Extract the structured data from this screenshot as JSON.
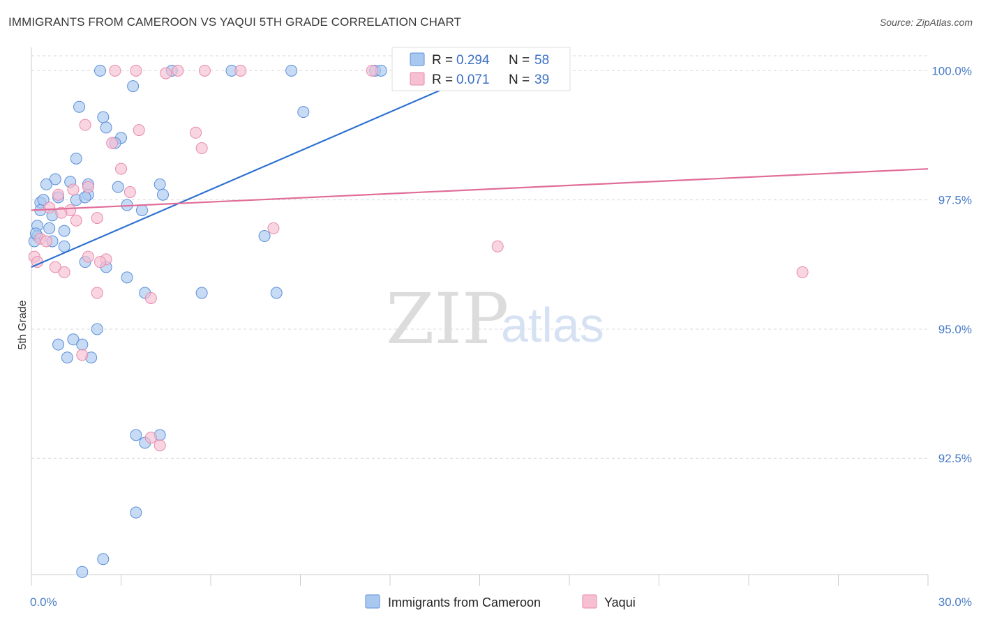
{
  "header": {
    "title": "IMMIGRANTS FROM CAMEROON VS YAQUI 5TH GRADE CORRELATION CHART",
    "source": "Source: ZipAtlas.com"
  },
  "watermark": {
    "zip": "ZIP",
    "atlas": "atlas"
  },
  "colors": {
    "blue_fill": "#a9c8f0",
    "blue_stroke": "#5b8fd8",
    "blue_line": "#2e72d2",
    "pink_fill": "#f6bfd2",
    "pink_stroke": "#e88aab",
    "pink_line": "#e06d98",
    "grid": "#d8d8d8",
    "axis": "#cccccc",
    "tick_text": "#4a7bc8"
  },
  "legend": {
    "r_label": "R =",
    "n_label": "N =",
    "series": [
      {
        "r": "0.294",
        "n": "58"
      },
      {
        "r": "0.071",
        "n": "39"
      }
    ]
  },
  "chart_data": {
    "type": "scatter",
    "title": "IMMIGRANTS FROM CAMEROON VS YAQUI 5TH GRADE CORRELATION CHART",
    "xlabel": "",
    "ylabel": "5th Grade",
    "xlim": [
      0,
      30
    ],
    "ylim": [
      90.25,
      100.45
    ],
    "x_tick_labels": [
      "0.0%",
      "30.0%"
    ],
    "y_ticks": [
      92.5,
      95.0,
      97.5,
      100.0
    ],
    "y_tick_labels": [
      "92.5%",
      "95.0%",
      "97.5%",
      "100.0%"
    ],
    "grid": true,
    "legend_position": "top-center",
    "series": [
      {
        "name": "Immigrants from Cameroon",
        "color": "#a9c8f0",
        "trend": [
          [
            0,
            96.2
          ],
          [
            15.0,
            99.95
          ]
        ],
        "points": [
          [
            2.3,
            100.0
          ],
          [
            3.4,
            99.7
          ],
          [
            4.7,
            100.0
          ],
          [
            6.7,
            100.0
          ],
          [
            8.7,
            100.0
          ],
          [
            11.5,
            100.0
          ],
          [
            11.7,
            100.0
          ],
          [
            9.1,
            99.2
          ],
          [
            1.6,
            99.3
          ],
          [
            2.4,
            99.1
          ],
          [
            2.5,
            98.9
          ],
          [
            3.0,
            98.7
          ],
          [
            2.8,
            98.6
          ],
          [
            1.5,
            98.3
          ],
          [
            0.8,
            97.9
          ],
          [
            0.5,
            97.8
          ],
          [
            1.3,
            97.85
          ],
          [
            1.9,
            97.8
          ],
          [
            2.9,
            97.75
          ],
          [
            4.3,
            97.8
          ],
          [
            4.4,
            97.6
          ],
          [
            1.9,
            97.6
          ],
          [
            0.9,
            97.55
          ],
          [
            1.5,
            97.5
          ],
          [
            1.8,
            97.55
          ],
          [
            0.3,
            97.45
          ],
          [
            0.4,
            97.5
          ],
          [
            3.2,
            97.4
          ],
          [
            3.7,
            97.3
          ],
          [
            0.3,
            97.3
          ],
          [
            0.7,
            97.2
          ],
          [
            0.2,
            97.0
          ],
          [
            0.6,
            96.95
          ],
          [
            1.1,
            96.9
          ],
          [
            0.7,
            96.7
          ],
          [
            0.2,
            96.8
          ],
          [
            0.1,
            96.7
          ],
          [
            1.1,
            96.6
          ],
          [
            7.8,
            96.8
          ],
          [
            1.8,
            96.3
          ],
          [
            2.5,
            96.2
          ],
          [
            3.2,
            96.0
          ],
          [
            3.8,
            95.7
          ],
          [
            5.7,
            95.7
          ],
          [
            8.2,
            95.7
          ],
          [
            2.2,
            95.0
          ],
          [
            1.4,
            94.8
          ],
          [
            0.9,
            94.7
          ],
          [
            1.7,
            94.7
          ],
          [
            1.2,
            94.45
          ],
          [
            2.0,
            94.45
          ],
          [
            3.5,
            92.95
          ],
          [
            4.3,
            92.95
          ],
          [
            3.8,
            92.8
          ],
          [
            3.5,
            91.45
          ],
          [
            2.4,
            90.55
          ],
          [
            1.7,
            90.3
          ],
          [
            0.15,
            96.85
          ]
        ]
      },
      {
        "name": "Yaqui",
        "color": "#f6bfd2",
        "trend": [
          [
            0,
            97.3
          ],
          [
            30,
            98.1
          ]
        ],
        "points": [
          [
            2.8,
            100.0
          ],
          [
            3.5,
            100.0
          ],
          [
            4.5,
            99.95
          ],
          [
            4.9,
            100.0
          ],
          [
            5.8,
            100.0
          ],
          [
            7.0,
            100.0
          ],
          [
            11.4,
            100.0
          ],
          [
            1.8,
            98.95
          ],
          [
            3.6,
            98.85
          ],
          [
            5.5,
            98.8
          ],
          [
            2.7,
            98.6
          ],
          [
            5.7,
            98.5
          ],
          [
            3.0,
            98.1
          ],
          [
            1.9,
            97.75
          ],
          [
            1.4,
            97.7
          ],
          [
            3.3,
            97.65
          ],
          [
            0.9,
            97.6
          ],
          [
            0.6,
            97.35
          ],
          [
            1.3,
            97.3
          ],
          [
            1.0,
            97.25
          ],
          [
            2.2,
            97.15
          ],
          [
            1.5,
            97.1
          ],
          [
            8.1,
            96.95
          ],
          [
            0.3,
            96.75
          ],
          [
            0.5,
            96.7
          ],
          [
            15.6,
            96.6
          ],
          [
            0.1,
            96.4
          ],
          [
            1.9,
            96.4
          ],
          [
            2.5,
            96.35
          ],
          [
            2.3,
            96.3
          ],
          [
            0.2,
            96.3
          ],
          [
            0.8,
            96.2
          ],
          [
            1.1,
            96.1
          ],
          [
            25.8,
            96.1
          ],
          [
            2.2,
            95.7
          ],
          [
            4.0,
            95.6
          ],
          [
            1.7,
            94.5
          ],
          [
            4.0,
            92.9
          ],
          [
            4.3,
            92.75
          ]
        ]
      }
    ]
  }
}
